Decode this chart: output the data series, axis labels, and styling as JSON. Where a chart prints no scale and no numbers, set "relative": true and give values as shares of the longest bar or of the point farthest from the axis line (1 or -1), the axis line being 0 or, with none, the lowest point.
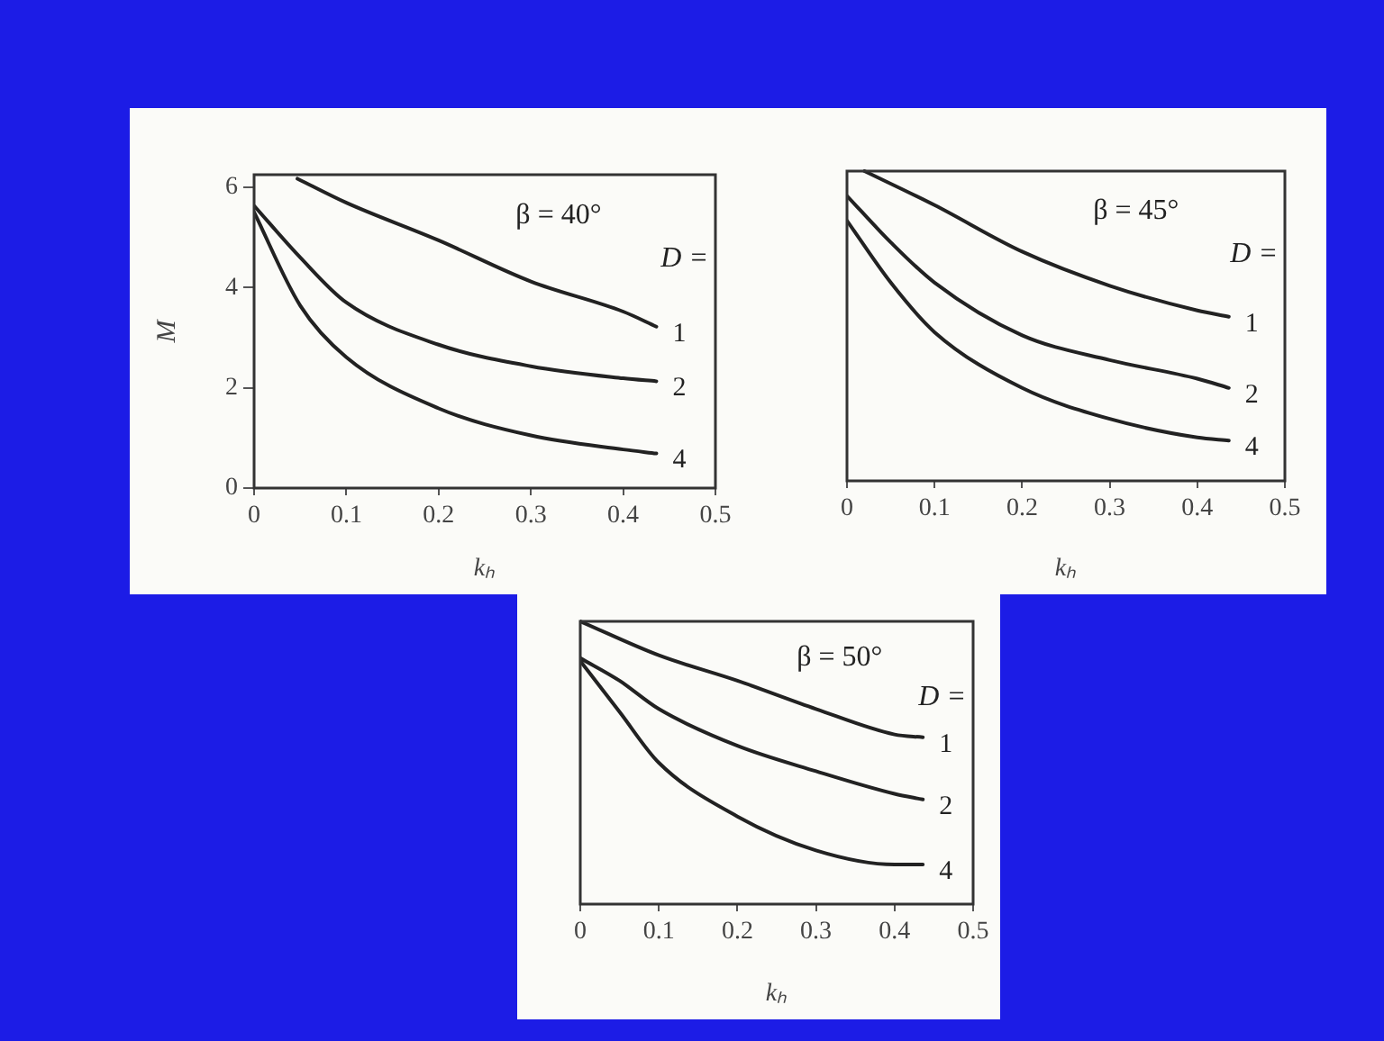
{
  "chart_data": [
    {
      "type": "line",
      "xlabel": "kₕ",
      "ylabel": "M",
      "annotations": [
        "β = 40°",
        "D ="
      ],
      "xlim": [
        0,
        0.5
      ],
      "xticks": [
        0,
        0.1,
        0.2,
        0.3,
        0.4,
        0.5
      ],
      "ylim": [
        0,
        6.25
      ],
      "yticks": [
        0,
        2,
        4,
        6
      ],
      "grid": false,
      "legend": false,
      "marker": "none",
      "line_style": "solid",
      "series": [
        {
          "name": "1",
          "color": "#222222",
          "x": [
            0.047,
            0.1,
            0.2,
            0.3,
            0.4,
            0.436
          ],
          "values": [
            6.17,
            5.69,
            4.94,
            4.12,
            3.52,
            3.22
          ]
        },
        {
          "name": "2",
          "color": "#222222",
          "x": [
            0,
            0.05,
            0.1,
            0.2,
            0.3,
            0.4,
            0.436
          ],
          "values": [
            5.63,
            4.6,
            3.7,
            2.86,
            2.43,
            2.19,
            2.13
          ]
        },
        {
          "name": "4",
          "color": "#222222",
          "x": [
            0,
            0.05,
            0.1,
            0.2,
            0.3,
            0.4,
            0.436
          ],
          "values": [
            5.5,
            3.64,
            2.61,
            1.59,
            1.05,
            0.77,
            0.69
          ]
        }
      ]
    },
    {
      "type": "line",
      "xlabel": "kₕ",
      "annotations": [
        "β = 45°",
        "D ="
      ],
      "xlim": [
        0,
        0.5
      ],
      "xticks": [
        0,
        0.1,
        0.2,
        0.3,
        0.4,
        0.5
      ],
      "relative": true,
      "grid": false,
      "legend": false,
      "marker": "none",
      "line_style": "solid",
      "series": [
        {
          "name": "1",
          "color": "#222222",
          "x": [
            0.02,
            0.1,
            0.2,
            0.3,
            0.4,
            0.436
          ],
          "values": [
            1,
            0.89,
            0.74,
            0.63,
            0.55,
            0.53
          ]
        },
        {
          "name": "2",
          "color": "#222222",
          "x": [
            0,
            0.05,
            0.1,
            0.2,
            0.3,
            0.4,
            0.436
          ],
          "values": [
            0.92,
            0.77,
            0.64,
            0.47,
            0.39,
            0.33,
            0.3
          ]
        },
        {
          "name": "4",
          "color": "#222222",
          "x": [
            0,
            0.05,
            0.1,
            0.2,
            0.3,
            0.4,
            0.436
          ],
          "values": [
            0.84,
            0.64,
            0.48,
            0.3,
            0.2,
            0.14,
            0.13
          ]
        }
      ]
    },
    {
      "type": "line",
      "xlabel": "kₕ",
      "annotations": [
        "β = 50°",
        "D ="
      ],
      "xlim": [
        0,
        0.5
      ],
      "xticks": [
        0,
        0.1,
        0.2,
        0.3,
        0.4,
        0.5
      ],
      "relative": true,
      "grid": false,
      "legend": false,
      "marker": "none",
      "line_style": "solid",
      "series": [
        {
          "name": "1",
          "color": "#222222",
          "x": [
            0,
            0.1,
            0.2,
            0.3,
            0.4,
            0.436
          ],
          "values": [
            1,
            0.88,
            0.79,
            0.69,
            0.6,
            0.59
          ]
        },
        {
          "name": "2",
          "color": "#222222",
          "x": [
            0,
            0.05,
            0.1,
            0.2,
            0.3,
            0.4,
            0.436
          ],
          "values": [
            0.87,
            0.79,
            0.69,
            0.56,
            0.47,
            0.39,
            0.37
          ]
        },
        {
          "name": "4",
          "color": "#222222",
          "x": [
            0,
            0.05,
            0.1,
            0.2,
            0.3,
            0.4,
            0.436
          ],
          "values": [
            0.86,
            0.68,
            0.5,
            0.31,
            0.19,
            0.14,
            0.14
          ]
        }
      ]
    }
  ]
}
